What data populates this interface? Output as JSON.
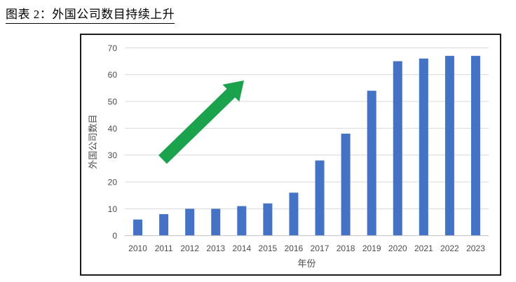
{
  "page": {
    "title": "图表 2：外国公司数目持续上升"
  },
  "chart_data": {
    "type": "bar",
    "title": "",
    "categories": [
      "2010",
      "2011",
      "2012",
      "2013",
      "2014",
      "2015",
      "2016",
      "2017",
      "2018",
      "2019",
      "2020",
      "2021",
      "2022",
      "2023"
    ],
    "values": [
      6,
      8,
      10,
      10,
      11,
      12,
      16,
      28,
      38,
      54,
      65,
      66,
      67,
      67
    ],
    "xlabel": "年份",
    "ylabel": "外国公司数目",
    "ylim": [
      0,
      70
    ],
    "ytick_step": 10,
    "yticks": [
      0,
      10,
      20,
      30,
      40,
      50,
      60,
      70
    ],
    "grid": true,
    "legend": "none",
    "bar_color": "#4472C4",
    "annotation": {
      "name": "upward-trend-arrow",
      "shape": "block-arrow",
      "direction": "up-right",
      "color": "#1AA24D"
    }
  },
  "style": {
    "gridline_color": "#D9D9D9",
    "axis_line_color": "#BFBFBF",
    "tick_label_color": "#4d4d4d",
    "axis_title_color": "#4d4d4d",
    "frame_border_color": "#1a1a1a",
    "background": "#ffffff"
  }
}
